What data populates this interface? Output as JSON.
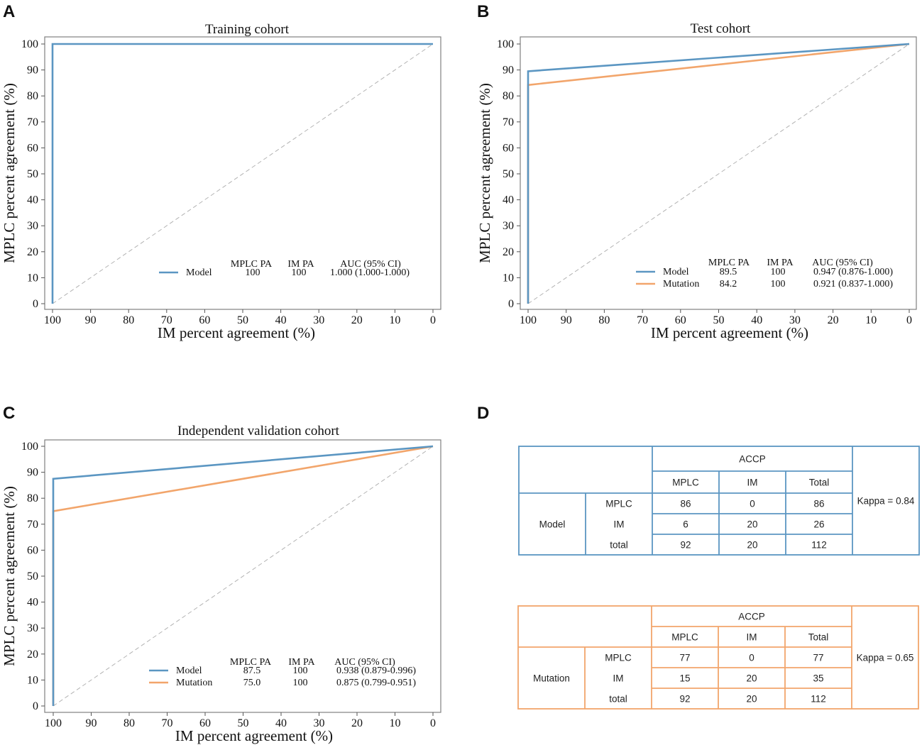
{
  "colors": {
    "model": "#5b96c2",
    "mutation": "#f2a56b",
    "diag": "#b3b3b3",
    "axis": "#808080"
  },
  "panels": {
    "A": "A",
    "B": "B",
    "C": "C",
    "D": "D"
  },
  "chart_data": [
    {
      "panel": "A",
      "type": "line",
      "title": "Training cohort",
      "xlabel": "IM percent agreement (%)",
      "ylabel": "MPLC percent agreement (%)",
      "xlim": [
        100,
        0
      ],
      "ylim": [
        0,
        100
      ],
      "xticks": [
        "100",
        "90",
        "80",
        "70",
        "60",
        "50",
        "40",
        "30",
        "20",
        "10",
        "0"
      ],
      "yticks": [
        "0",
        "10",
        "20",
        "30",
        "40",
        "50",
        "60",
        "70",
        "80",
        "90",
        "100"
      ],
      "diagonal": true,
      "legend_header": {
        "mplc": "MPLC PA",
        "im": "IM PA",
        "auc": "AUC (95% CI)"
      },
      "series": [
        {
          "name": "Model",
          "key": "model",
          "mplc_pa": "100",
          "im_pa": "100",
          "auc": "1.000 (1.000-1.000)",
          "x": [
            100,
            100,
            0
          ],
          "y": [
            0,
            100,
            100
          ]
        }
      ]
    },
    {
      "panel": "B",
      "type": "line",
      "title": "Test cohort",
      "xlabel": "IM percent agreement (%)",
      "ylabel": "MPLC percent agreement (%)",
      "xlim": [
        100,
        0
      ],
      "ylim": [
        0,
        100
      ],
      "xticks": [
        "100",
        "90",
        "80",
        "70",
        "60",
        "50",
        "40",
        "30",
        "20",
        "10",
        "0"
      ],
      "yticks": [
        "0",
        "10",
        "20",
        "30",
        "40",
        "50",
        "60",
        "70",
        "80",
        "90",
        "100"
      ],
      "diagonal": true,
      "legend_header": {
        "mplc": "MPLC PA",
        "im": "IM PA",
        "auc": "AUC (95% CI)"
      },
      "series": [
        {
          "name": "Model",
          "key": "model",
          "mplc_pa": "89.5",
          "im_pa": "100",
          "auc": "0.947 (0.876-1.000)",
          "x": [
            100,
            100,
            0
          ],
          "y": [
            0,
            89.5,
            100
          ]
        },
        {
          "name": "Mutation",
          "key": "mutation",
          "mplc_pa": "84.2",
          "im_pa": "100",
          "auc": "0.921 (0.837-1.000)",
          "x": [
            100,
            100,
            0
          ],
          "y": [
            0,
            84.2,
            100
          ]
        }
      ]
    },
    {
      "panel": "C",
      "type": "line",
      "title": "Independent validation cohort",
      "xlabel": "IM percent agreement (%)",
      "ylabel": "MPLC percent agreement (%)",
      "xlim": [
        100,
        0
      ],
      "ylim": [
        0,
        100
      ],
      "xticks": [
        "100",
        "90",
        "80",
        "70",
        "60",
        "50",
        "40",
        "30",
        "20",
        "10",
        "0"
      ],
      "yticks": [
        "0",
        "10",
        "20",
        "30",
        "40",
        "50",
        "60",
        "70",
        "80",
        "90",
        "100"
      ],
      "diagonal": true,
      "legend_header": {
        "mplc": "MPLC PA",
        "im": "IM PA",
        "auc": "AUC (95% CI)"
      },
      "series": [
        {
          "name": "Model",
          "key": "model",
          "mplc_pa": "87.5",
          "im_pa": "100",
          "auc": "0.938 (0.879-0.996)",
          "x": [
            100,
            100,
            0
          ],
          "y": [
            0,
            87.5,
            100
          ]
        },
        {
          "name": "Mutation",
          "key": "mutation",
          "mplc_pa": "75.0",
          "im_pa": "100",
          "auc": "0.875 (0.799-0.951)",
          "x": [
            100,
            100,
            0
          ],
          "y": [
            0,
            75.0,
            100
          ]
        }
      ]
    },
    {
      "panel": "D",
      "type": "table",
      "tables": [
        {
          "key": "model",
          "header": "ACCP",
          "columns": [
            "MPLC",
            "IM",
            "Total"
          ],
          "group": "Model",
          "rows": [
            {
              "label": "MPLC",
              "values": [
                "86",
                "0",
                "86"
              ]
            },
            {
              "label": "IM",
              "values": [
                "6",
                "20",
                "26"
              ]
            },
            {
              "label": "total",
              "values": [
                "92",
                "20",
                "112"
              ]
            }
          ],
          "kappa": "Kappa = 0.84"
        },
        {
          "key": "mutation",
          "header": "ACCP",
          "columns": [
            "MPLC",
            "IM",
            "Total"
          ],
          "group": "Mutation",
          "rows": [
            {
              "label": "MPLC",
              "values": [
                "77",
                "0",
                "77"
              ]
            },
            {
              "label": "IM",
              "values": [
                "15",
                "20",
                "35"
              ]
            },
            {
              "label": "total",
              "values": [
                "92",
                "20",
                "112"
              ]
            }
          ],
          "kappa": "Kappa = 0.65"
        }
      ]
    }
  ]
}
